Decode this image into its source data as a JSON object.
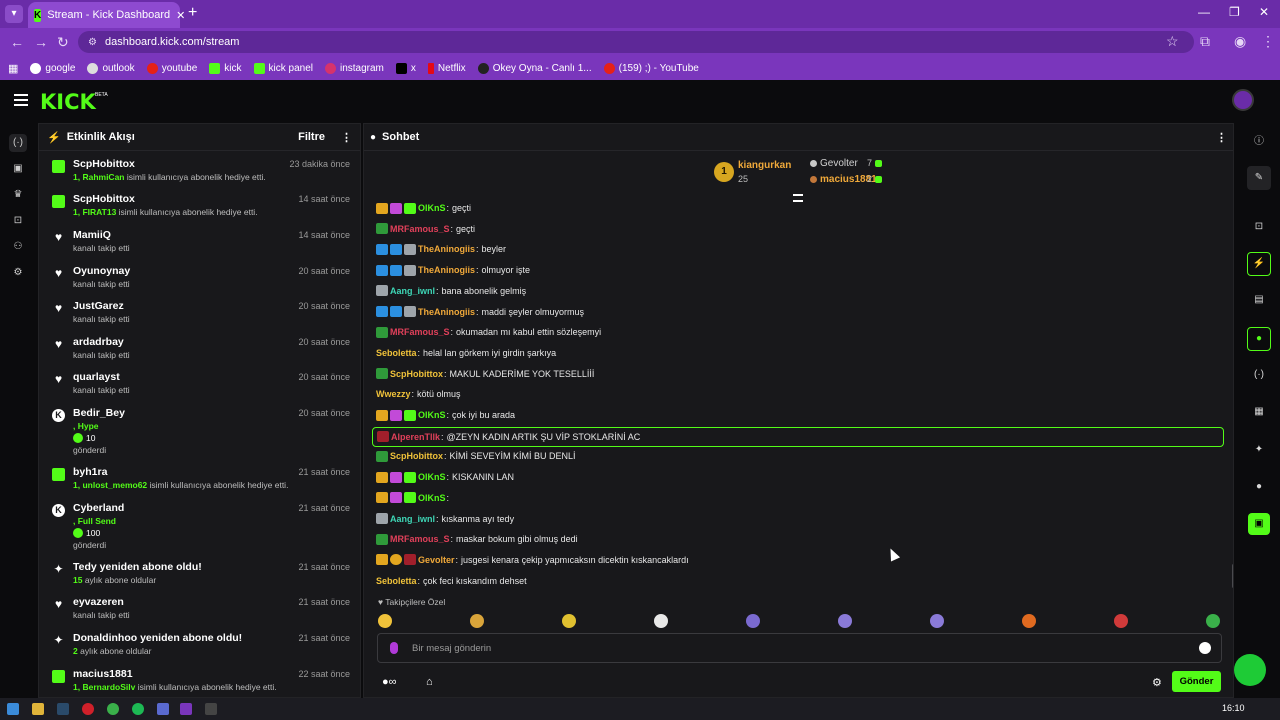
{
  "browser": {
    "tab_title": "Stream - Kick Dashboard",
    "url": "dashboard.kick.com/stream",
    "bookmarks": [
      "google",
      "outlook",
      "youtube",
      "kick",
      "kick panel",
      "instagram",
      "x",
      "Netflix",
      "Okey Oyna - Canlı 1...",
      "(159) ;) - YouTube"
    ]
  },
  "brand": {
    "logo": "KICK",
    "beta": "BETA",
    "accent": "#53fc18"
  },
  "activity": {
    "title": "Etkinlik Akışı",
    "filter": "Filtre",
    "items": [
      {
        "icon": "gift",
        "name": "ScpHobittox",
        "time": "23 dakika önce",
        "green": "1, RahmiCan",
        "sub": " isimli kullanıcıya abonelik hediye etti."
      },
      {
        "icon": "gift",
        "name": "ScpHobittox",
        "time": "14 saat önce",
        "green": "1, FIRAT13",
        "sub": " isimli kullanıcıya abonelik hediye etti."
      },
      {
        "icon": "heart",
        "name": "MamiiQ",
        "time": "14 saat önce",
        "green": "",
        "sub": "kanalı takip etti"
      },
      {
        "icon": "heart",
        "name": "Oyunoynay",
        "time": "20 saat önce",
        "green": "",
        "sub": "kanalı takip etti"
      },
      {
        "icon": "heart",
        "name": "JustGarez",
        "time": "20 saat önce",
        "green": "",
        "sub": "kanalı takip etti"
      },
      {
        "icon": "heart",
        "name": "ardadrbay",
        "time": "20 saat önce",
        "green": "",
        "sub": "kanalı takip etti"
      },
      {
        "icon": "heart",
        "name": "quarlayst",
        "time": "20 saat önce",
        "green": "",
        "sub": "kanalı takip etti"
      },
      {
        "icon": "kick",
        "name": "Bedir_Bey",
        "time": "20 saat önce",
        "green": ", Hype",
        "sub": "",
        "amount": "10",
        "tail": "gönderdi"
      },
      {
        "icon": "gift",
        "name": "byh1ra",
        "time": "21 saat önce",
        "green": "1, unlost_memo62",
        "sub": " isimli kullanıcıya abonelik hediye etti."
      },
      {
        "icon": "kick",
        "name": "Cyberland",
        "time": "21 saat önce",
        "green": ", Full Send",
        "sub": "",
        "amount": "100",
        "tail": "gönderdi"
      },
      {
        "icon": "star",
        "name": "Tedy yeniden abone oldu!",
        "time": "21 saat önce",
        "green": "15",
        "sub": " aylık abone oldular"
      },
      {
        "icon": "heart",
        "name": "eyvazeren",
        "time": "21 saat önce",
        "green": "",
        "sub": "kanalı takip etti"
      },
      {
        "icon": "star",
        "name": "Donaldinhoo yeniden abone oldu!",
        "time": "21 saat önce",
        "green": "2",
        "sub": " aylık abone oldular"
      },
      {
        "icon": "gift",
        "name": "macius1881",
        "time": "22 saat önce",
        "green": "1, BernardoSilv",
        "sub": " isimli kullanıcıya abonelik hediye etti."
      }
    ]
  },
  "chat": {
    "title": "Sohbet",
    "leaderboard": {
      "first": {
        "rank": "1",
        "name": "kiangurkan",
        "value": "25"
      },
      "second": {
        "name": "Gevolter",
        "value": "7"
      },
      "third": {
        "name": "macius1881",
        "value": "2"
      }
    },
    "messages": [
      {
        "badges": [
          "b-crown",
          "b-pink",
          "b-gift"
        ],
        "user": "OlKnS",
        "color": "#53fc18",
        "text": "geçti"
      },
      {
        "badges": [
          "b-green"
        ],
        "user": "MRFamous_S",
        "color": "#e0405a",
        "text": "geçti"
      },
      {
        "badges": [
          "b-blue",
          "b-blue",
          "b-grey"
        ],
        "user": "TheAninogiis",
        "color": "#f0a93a",
        "text": "beyler"
      },
      {
        "badges": [
          "b-blue",
          "b-blue",
          "b-grey"
        ],
        "user": "TheAninogiis",
        "color": "#f0a93a",
        "text": "olmuyor işte"
      },
      {
        "badges": [
          "b-grey"
        ],
        "user": "Aang_iwnl",
        "color": "#3ed6b6",
        "text": "bana abonelik gelmiş"
      },
      {
        "badges": [
          "b-blue",
          "b-blue",
          "b-grey"
        ],
        "user": "TheAninogiis",
        "color": "#f0a93a",
        "text": "maddi şeyler olmuyormuş"
      },
      {
        "badges": [
          "b-green"
        ],
        "user": "MRFamous_S",
        "color": "#e0405a",
        "text": "okumadan mı kabul ettin sözleşemyi"
      },
      {
        "badges": [],
        "user": "Seboletta",
        "color": "#f0c23a",
        "text": "helal lan görkem iyi girdin şarkıya"
      },
      {
        "badges": [
          "b-green"
        ],
        "user": "ScpHobittox",
        "color": "#f0c23a",
        "text": "MAKUL KADERİME YOK TESELLİİİ"
      },
      {
        "badges": [],
        "user": "Wwezzy",
        "color": "#f0c23a",
        "text": "kötü olmuş"
      },
      {
        "badges": [
          "b-crown",
          "b-pink",
          "b-gift"
        ],
        "user": "OlKnS",
        "color": "#53fc18",
        "text": "çok iyi bu arada"
      },
      {
        "badges": [
          "b-red"
        ],
        "user": "AlperenTllk",
        "color": "#e0405a",
        "text": "@ZEYN KADIN ARTIK ŞU VİP STOKLARİNİ AC",
        "highlight": true
      },
      {
        "badges": [
          "b-green"
        ],
        "user": "ScpHobittox",
        "color": "#f0c23a",
        "text": "KİMİ SEVEYİM KİMİ BU DENLİ"
      },
      {
        "badges": [
          "b-crown",
          "b-pink",
          "b-gift"
        ],
        "user": "OlKnS",
        "color": "#53fc18",
        "text": "KISKANIN LAN"
      },
      {
        "badges": [
          "b-crown",
          "b-pink",
          "b-gift"
        ],
        "user": "OlKnS",
        "color": "#53fc18",
        "text": ""
      },
      {
        "badges": [
          "b-grey"
        ],
        "user": "Aang_iwnl",
        "color": "#3ed6b6",
        "text": "kıskanma ayı tedy"
      },
      {
        "badges": [
          "b-green"
        ],
        "user": "MRFamous_S",
        "color": "#e0405a",
        "text": "maskar bokum gibi olmuş dedi"
      },
      {
        "badges": [
          "b-crown",
          "b-coin",
          "b-red"
        ],
        "user": "Gevolter",
        "color": "#f0a93a",
        "text": "jusgesi kenara çekip yapmıcaksın dicektin kıskancaklardı"
      },
      {
        "badges": [],
        "user": "Seboletta",
        "color": "#f0c23a",
        "text": "çok feci kıskandım dehset"
      }
    ],
    "emote_section": "Takipçilere Özel",
    "input_placeholder": "Bir mesaj gönderin",
    "send_label": "Gönder"
  },
  "taskbar": {
    "time": "16:10"
  }
}
